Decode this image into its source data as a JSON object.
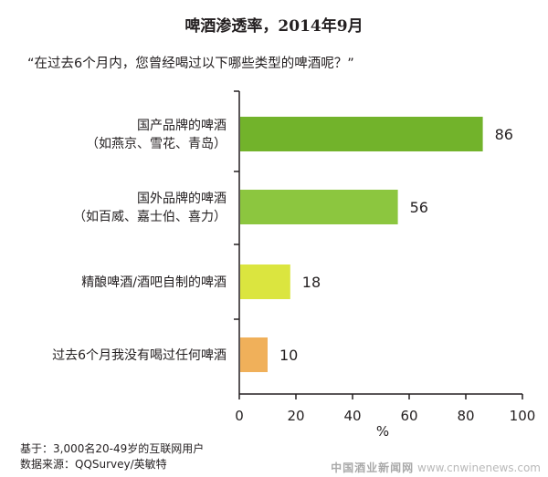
{
  "chart_data": {
    "type": "bar",
    "orientation": "horizontal",
    "title": "啤酒渗透率，2014年9月",
    "subtitle": "“在过去6个月内，您曾经喝过以下哪些类型的啤酒呢？”",
    "xlabel": "%",
    "xlim": [
      0,
      100
    ],
    "xticks": [
      "0",
      "20",
      "40",
      "60",
      "80",
      "100"
    ],
    "categories": [
      [
        "国产品牌的啤酒",
        "（如燕京、雪花、青岛）"
      ],
      [
        "国外品牌的啤酒",
        "（如百威、嘉士伯、喜力）"
      ],
      [
        "精酿啤酒/酒吧自制的啤酒"
      ],
      [
        "过去6个月我没有喝过任何啤酒"
      ]
    ],
    "values": [
      86,
      56,
      18,
      10
    ],
    "colors": [
      "#72b32b",
      "#8cc63f",
      "#dbe53f",
      "#f0b05a"
    ],
    "grid": false
  },
  "footnote": {
    "base": "基于：3,000名20-49岁的互联网用户",
    "source": "数据来源：QQSurvey/英敏特"
  },
  "watermark": {
    "cn": "中国酒业新闻网",
    "url": "www.cnwinenews.com"
  }
}
